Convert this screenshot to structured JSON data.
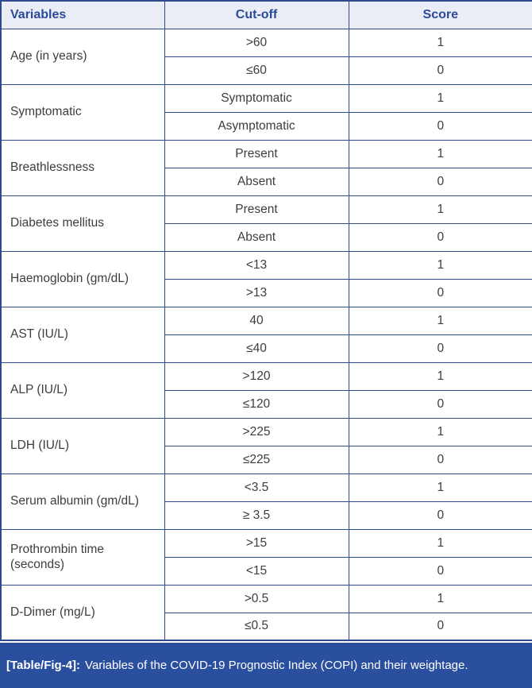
{
  "table": {
    "headers": {
      "variables": "Variables",
      "cutoff": "Cut-off",
      "score": "Score"
    },
    "groups": [
      {
        "variable": "Age (in years)",
        "rows": [
          {
            "cutoff": ">60",
            "score": "1"
          },
          {
            "cutoff": "≤60",
            "score": "0"
          }
        ]
      },
      {
        "variable": "Symptomatic",
        "rows": [
          {
            "cutoff": "Symptomatic",
            "score": "1"
          },
          {
            "cutoff": "Asymptomatic",
            "score": "0"
          }
        ]
      },
      {
        "variable": "Breathlessness",
        "rows": [
          {
            "cutoff": "Present",
            "score": "1"
          },
          {
            "cutoff": "Absent",
            "score": "0"
          }
        ]
      },
      {
        "variable": "Diabetes mellitus",
        "rows": [
          {
            "cutoff": "Present",
            "score": "1"
          },
          {
            "cutoff": "Absent",
            "score": "0"
          }
        ]
      },
      {
        "variable": "Haemoglobin (gm/dL)",
        "rows": [
          {
            "cutoff": "<13",
            "score": "1"
          },
          {
            "cutoff": ">13",
            "score": "0"
          }
        ]
      },
      {
        "variable": "AST (IU/L)",
        "rows": [
          {
            "cutoff": "40",
            "score": "1"
          },
          {
            "cutoff": "≤40",
            "score": "0"
          }
        ]
      },
      {
        "variable": "ALP (IU/L)",
        "rows": [
          {
            "cutoff": ">120",
            "score": "1"
          },
          {
            "cutoff": "≤120",
            "score": "0"
          }
        ]
      },
      {
        "variable": "LDH (IU/L)",
        "rows": [
          {
            "cutoff": ">225",
            "score": "1"
          },
          {
            "cutoff": "≤225",
            "score": "0"
          }
        ]
      },
      {
        "variable": "Serum albumin (gm/dL)",
        "rows": [
          {
            "cutoff": "<3.5",
            "score": "1"
          },
          {
            "cutoff": "≥ 3.5",
            "score": "0"
          }
        ]
      },
      {
        "variable": "Prothrombin time (seconds)",
        "rows": [
          {
            "cutoff": ">15",
            "score": "1"
          },
          {
            "cutoff": "<15",
            "score": "0"
          }
        ]
      },
      {
        "variable": "D-Dimer (mg/L)",
        "rows": [
          {
            "cutoff": ">0.5",
            "score": "1"
          },
          {
            "cutoff": "≤0.5",
            "score": "0"
          }
        ]
      }
    ]
  },
  "caption": {
    "label": "[Table/Fig-4]:",
    "text": "Variables of the COVID-19 Prognostic Index (COPI) and their weightage."
  },
  "colors": {
    "border": "#2e4a8f",
    "header_bg": "#eaedf5",
    "header_text": "#2b4a9b",
    "body_text": "#3d3d3d",
    "caption_bg": "#2a4f9e",
    "caption_text": "#ffffff"
  }
}
